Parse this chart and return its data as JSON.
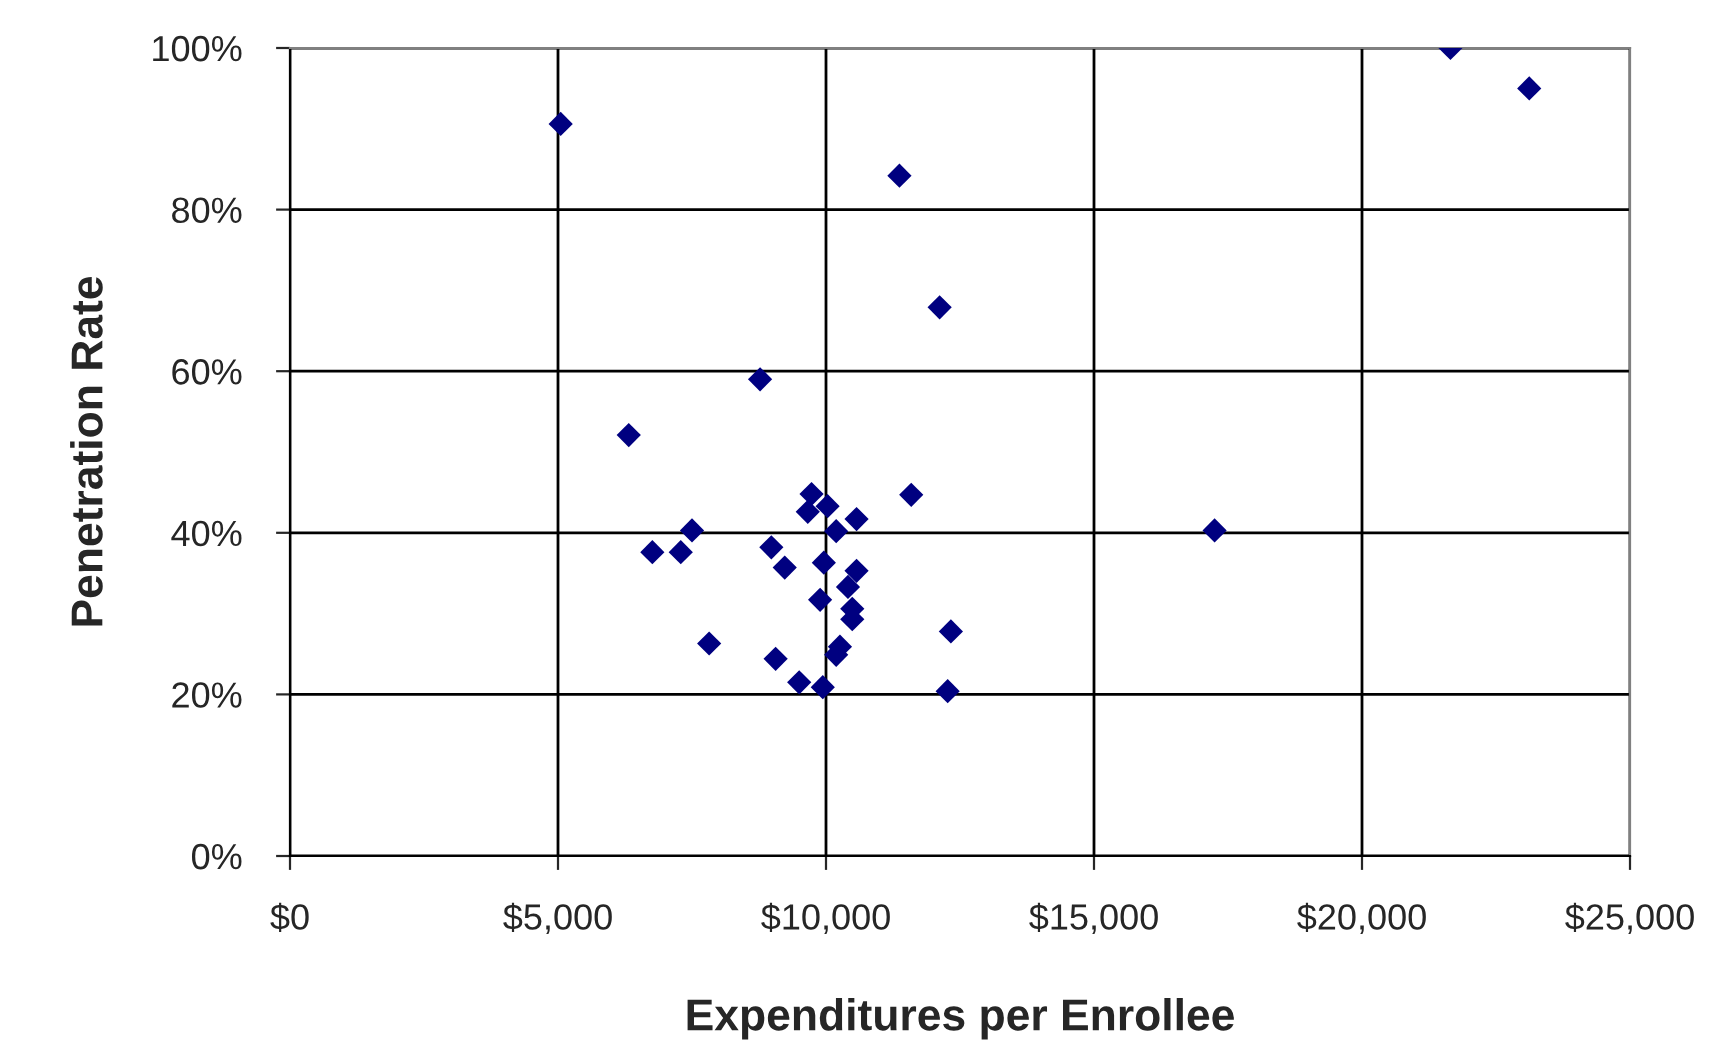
{
  "chart_data": {
    "type": "scatter",
    "xlabel": "Expenditures per Enrollee",
    "ylabel": "Penetration Rate",
    "x": [
      21650,
      23120,
      5050,
      11370,
      12120,
      8770,
      6320,
      11590,
      9730,
      10030,
      9660,
      10570,
      10190,
      7500,
      17250,
      6760,
      7290,
      8980,
      9230,
      9960,
      10570,
      10410,
      9890,
      10490,
      10490,
      12330,
      7820,
      10260,
      10190,
      9060,
      9500,
      9940,
      12270
    ],
    "series": [
      {
        "color": "#000080",
        "values": [
          100,
          95.0,
          90.6,
          84.2,
          67.9,
          59.0,
          52.1,
          44.7,
          44.8,
          43.3,
          42.6,
          41.7,
          40.2,
          40.3,
          40.3,
          37.6,
          37.6,
          38.2,
          35.7,
          36.3,
          35.3,
          33.3,
          31.7,
          30.6,
          29.3,
          27.8,
          26.3,
          25.9,
          24.9,
          24.4,
          21.5,
          20.9,
          20.4
        ]
      }
    ],
    "marker": "diamond",
    "grid": true,
    "legend": false,
    "xlim": [
      0,
      25000
    ],
    "xticks": [
      {
        "value": 0,
        "label": "$0"
      },
      {
        "value": 5000,
        "label": "$5,000"
      },
      {
        "value": 10000,
        "label": "$10,000"
      },
      {
        "value": 15000,
        "label": "$15,000"
      },
      {
        "value": 20000,
        "label": "$20,000"
      },
      {
        "value": 25000,
        "label": "$25,000"
      }
    ],
    "ylim": [
      0,
      100
    ],
    "yticks": [
      {
        "value": 0,
        "label": "0%"
      },
      {
        "value": 20,
        "label": "20%"
      },
      {
        "value": 40,
        "label": "40%"
      },
      {
        "value": 60,
        "label": "60%"
      },
      {
        "value": 80,
        "label": "80%"
      },
      {
        "value": 100,
        "label": "100%"
      }
    ]
  }
}
